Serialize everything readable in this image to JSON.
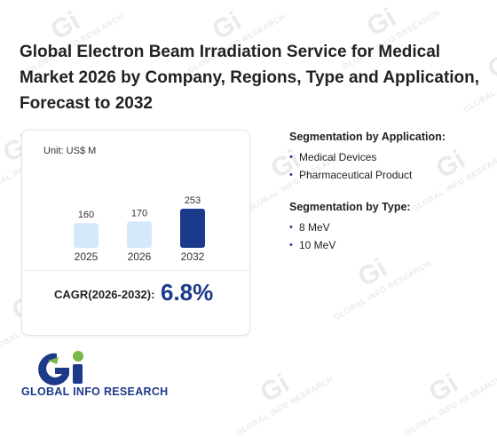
{
  "title": "Global Electron Beam Irradiation Service for Medical Market 2026 by Company, Regions, Type and Application, Forecast to 2032",
  "chart_data": {
    "type": "bar",
    "unit_label": "Unit: US$ M",
    "categories": [
      "2025",
      "2026",
      "2032"
    ],
    "values": [
      160,
      170,
      253
    ],
    "colors": [
      "#d6e8fb",
      "#d6e8fb",
      "#1b3a8c"
    ]
  },
  "cagr": {
    "label": "CAGR(2026-2032):",
    "value": "6.8%"
  },
  "segmentation": {
    "application": {
      "title": "Segmentation by Application:",
      "items": [
        "Medical Devices",
        "Pharmaceutical Product"
      ]
    },
    "type": {
      "title": "Segmentation by Type:",
      "items": [
        "8 MeV",
        "10 MeV"
      ]
    }
  },
  "brand": {
    "logo_text": "GLOBAL INFO RESEARCH",
    "watermark_text": "GLOBAL INFO RESEARCH",
    "logo_colors": {
      "blue": "#1d3a8a",
      "green": "#7ab648"
    }
  }
}
